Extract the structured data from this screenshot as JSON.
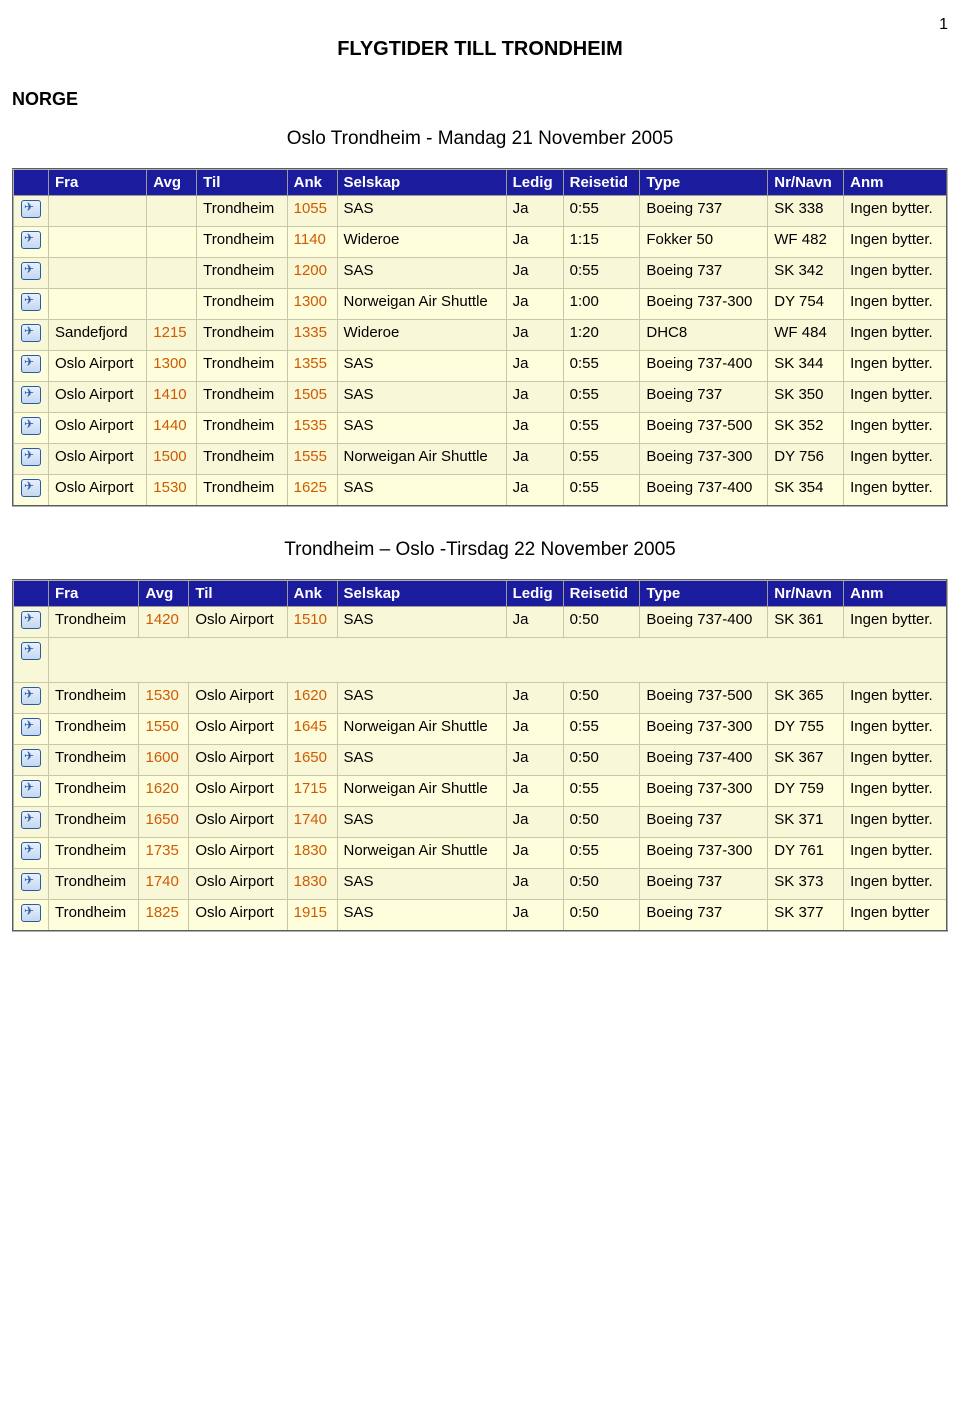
{
  "page_number": "1",
  "main_title": "FLYGTIDER TILL TRONDHEIM",
  "country_label": "NORGE",
  "table1_subtitle": "Oslo Trondheim - Mandag 21 November 2005",
  "table2_subtitle": "Trondheim – Oslo  -Tirsdag 22 November 2005",
  "columns": [
    "",
    "Fra",
    "Avg",
    "Til",
    "Ank",
    "Selskap",
    "Ledig",
    "Reisetid",
    "Type",
    "Nr/Navn",
    "Anm"
  ],
  "colors": {
    "header_bg": "#1b1b9e",
    "header_fg": "#ffffff",
    "row_a": "#f8f8d8",
    "row_b": "#fefedc",
    "time_color": "#d05a00"
  },
  "table1_rows": [
    {
      "fra": "",
      "avg": "",
      "til": "Trondheim",
      "ank": "1055",
      "selskap": "SAS",
      "ledig": "Ja",
      "reisetid": "0:55",
      "type": "Boeing 737",
      "nrnavn": "SK 338",
      "anm": "Ingen bytter."
    },
    {
      "fra": "",
      "avg": "",
      "til": "Trondheim",
      "ank": "1140",
      "selskap": "Wideroe",
      "ledig": "Ja",
      "reisetid": "1:15",
      "type": "Fokker 50",
      "nrnavn": "WF 482",
      "anm": "Ingen bytter."
    },
    {
      "fra": "",
      "avg": "",
      "til": "Trondheim",
      "ank": "1200",
      "selskap": "SAS",
      "ledig": "Ja",
      "reisetid": "0:55",
      "type": "Boeing 737",
      "nrnavn": "SK 342",
      "anm": "Ingen bytter."
    },
    {
      "fra": "",
      "avg": "",
      "til": "Trondheim",
      "ank": "1300",
      "selskap": "Norweigan Air Shuttle",
      "ledig": "Ja",
      "reisetid": "1:00",
      "type": "Boeing 737-300",
      "nrnavn": "DY 754",
      "anm": "Ingen bytter."
    },
    {
      "fra": "Sandefjord",
      "avg": "1215",
      "til": "Trondheim",
      "ank": "1335",
      "selskap": "Wideroe",
      "ledig": "Ja",
      "reisetid": "1:20",
      "type": "DHC8",
      "nrnavn": "WF 484",
      "anm": "Ingen bytter."
    },
    {
      "fra": "Oslo Airport",
      "avg": "1300",
      "til": "Trondheim",
      "ank": "1355",
      "selskap": "SAS",
      "ledig": "Ja",
      "reisetid": "0:55",
      "type": "Boeing 737-400",
      "nrnavn": "SK 344",
      "anm": "Ingen bytter."
    },
    {
      "fra": "Oslo Airport",
      "avg": "1410",
      "til": "Trondheim",
      "ank": "1505",
      "selskap": "SAS",
      "ledig": "Ja",
      "reisetid": "0:55",
      "type": "Boeing 737",
      "nrnavn": "SK 350",
      "anm": "Ingen bytter."
    },
    {
      "fra": "Oslo Airport",
      "avg": "1440",
      "til": "Trondheim",
      "ank": "1535",
      "selskap": "SAS",
      "ledig": "Ja",
      "reisetid": "0:55",
      "type": "Boeing 737-500",
      "nrnavn": "SK 352",
      "anm": "Ingen bytter."
    },
    {
      "fra": "Oslo Airport",
      "avg": "1500",
      "til": "Trondheim",
      "ank": "1555",
      "selskap": "Norweigan Air Shuttle",
      "ledig": "Ja",
      "reisetid": "0:55",
      "type": "Boeing 737-300",
      "nrnavn": "DY 756",
      "anm": "Ingen bytter."
    },
    {
      "fra": "Oslo Airport",
      "avg": "1530",
      "til": "Trondheim",
      "ank": "1625",
      "selskap": "SAS",
      "ledig": "Ja",
      "reisetid": "0:55",
      "type": "Boeing 737-400",
      "nrnavn": "SK 354",
      "anm": "Ingen bytter."
    }
  ],
  "table2_rows": [
    {
      "fra": "Trondheim",
      "avg": "1420",
      "til": "Oslo Airport",
      "ank": "1510",
      "selskap": "SAS",
      "ledig": "Ja",
      "reisetid": "0:50",
      "type": "Boeing 737-400",
      "nrnavn": "SK 361",
      "anm": "Ingen bytter."
    },
    {
      "spacer": true
    },
    {
      "fra": "Trondheim",
      "avg": "1530",
      "til": "Oslo Airport",
      "ank": "1620",
      "selskap": "SAS",
      "ledig": "Ja",
      "reisetid": "0:50",
      "type": "Boeing 737-500",
      "nrnavn": "SK 365",
      "anm": "Ingen bytter."
    },
    {
      "fra": "Trondheim",
      "avg": "1550",
      "til": "Oslo Airport",
      "ank": "1645",
      "selskap": "Norweigan Air Shuttle",
      "ledig": "Ja",
      "reisetid": "0:55",
      "type": "Boeing 737-300",
      "nrnavn": "DY 755",
      "anm": "Ingen bytter."
    },
    {
      "fra": "Trondheim",
      "avg": "1600",
      "til": "Oslo Airport",
      "ank": "1650",
      "selskap": "SAS",
      "ledig": "Ja",
      "reisetid": "0:50",
      "type": "Boeing 737-400",
      "nrnavn": "SK 367",
      "anm": "Ingen bytter."
    },
    {
      "fra": "Trondheim",
      "avg": "1620",
      "til": "Oslo Airport",
      "ank": "1715",
      "selskap": "Norweigan Air Shuttle",
      "ledig": "Ja",
      "reisetid": "0:55",
      "type": "Boeing 737-300",
      "nrnavn": "DY 759",
      "anm": "Ingen bytter."
    },
    {
      "fra": "Trondheim",
      "avg": "1650",
      "til": "Oslo Airport",
      "ank": "1740",
      "selskap": "SAS",
      "ledig": "Ja",
      "reisetid": "0:50",
      "type": "Boeing 737",
      "nrnavn": "SK 371",
      "anm": "Ingen bytter."
    },
    {
      "fra": "Trondheim",
      "avg": "1735",
      "til": "Oslo Airport",
      "ank": "1830",
      "selskap": "Norweigan Air Shuttle",
      "ledig": "Ja",
      "reisetid": "0:55",
      "type": "Boeing 737-300",
      "nrnavn": "DY 761",
      "anm": "Ingen bytter."
    },
    {
      "fra": "Trondheim",
      "avg": "1740",
      "til": "Oslo Airport",
      "ank": "1830",
      "selskap": "SAS",
      "ledig": "Ja",
      "reisetid": "0:50",
      "type": "Boeing 737",
      "nrnavn": "SK 373",
      "anm": "Ingen bytter."
    },
    {
      "fra": "Trondheim",
      "avg": "1825",
      "til": "Oslo Airport",
      "ank": "1915",
      "selskap": "SAS",
      "ledig": "Ja",
      "reisetid": "0:50",
      "type": "Boeing 737",
      "nrnavn": "SK 377",
      "anm": "Ingen bytter"
    }
  ]
}
